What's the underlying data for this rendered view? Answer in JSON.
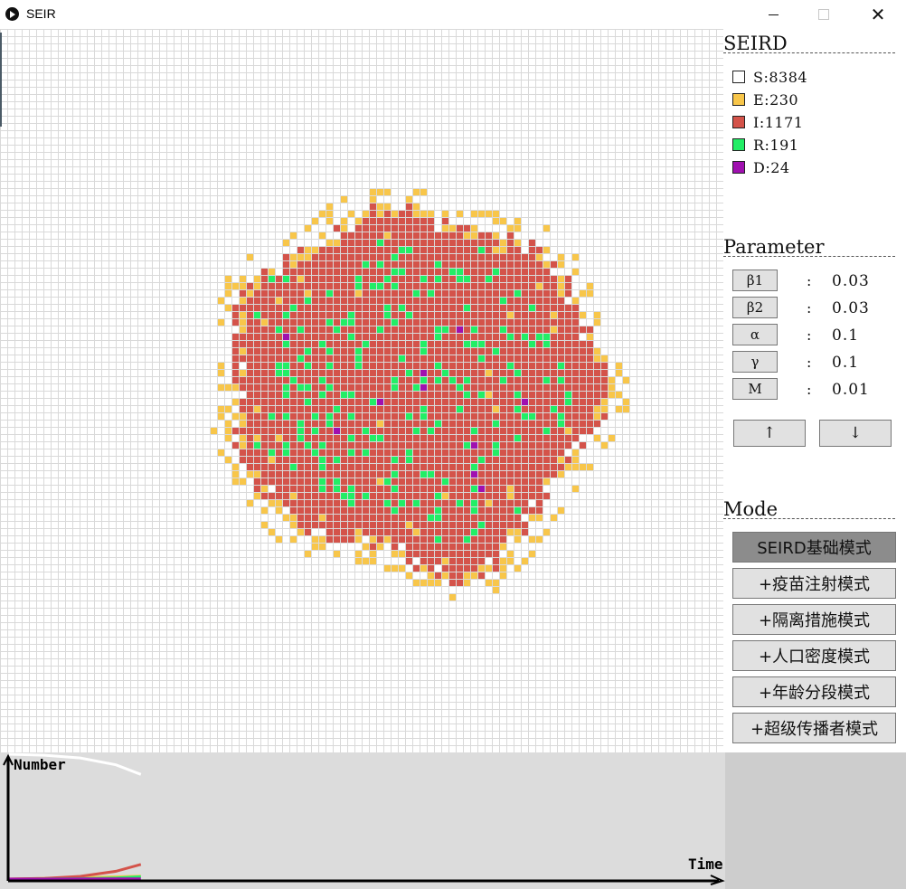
{
  "window": {
    "title": "SEIR",
    "controls": {
      "minimize_icon": "minimize-icon",
      "maximize_icon": "maximize-icon",
      "close_icon": "close-icon",
      "close_glyph": "✕"
    }
  },
  "legend": {
    "title": "SEIRD",
    "items": [
      {
        "label": "S:8384",
        "color": "#ffffff"
      },
      {
        "label": "E:230",
        "color": "#f8c64a"
      },
      {
        "label": "I:1171",
        "color": "#d4534a"
      },
      {
        "label": "R:191",
        "color": "#22ee66"
      },
      {
        "label": "D:24",
        "color": "#a010b0"
      }
    ]
  },
  "parameters": {
    "title": "Parameter",
    "items": [
      {
        "name": "β1",
        "value": "0.03"
      },
      {
        "name": "β2",
        "value": "0.03"
      },
      {
        "name": "α",
        "value": "0.1"
      },
      {
        "name": "γ",
        "value": "0.1"
      },
      {
        "name": "M",
        "value": "0.01"
      }
    ],
    "colon": ":",
    "up_label": "↑",
    "down_label": "↓"
  },
  "mode": {
    "title": "Mode",
    "buttons": [
      {
        "label": "SEIRD基础模式",
        "active": true
      },
      {
        "label": "+疫苗注射模式",
        "active": false
      },
      {
        "label": "+隔离措施模式",
        "active": false
      },
      {
        "label": "+人口密度模式",
        "active": false
      },
      {
        "label": "+年龄分段模式",
        "active": false
      },
      {
        "label": "+超级传播者模式",
        "active": false
      }
    ]
  },
  "colors": {
    "S": "#ffffff",
    "E": "#f8c64a",
    "I": "#d4534a",
    "R": "#22ee66",
    "D": "#a010b0",
    "grid_line": "#d9d9d9",
    "active_mode": "#8c8c8c"
  },
  "chart_data": {
    "type": "line",
    "ylabel": "Number",
    "xlabel": "Time",
    "xlim": [
      0,
      100
    ],
    "ylim": [
      0,
      10000
    ],
    "series": [
      {
        "name": "S",
        "color": "#ffffff",
        "x": [
          0,
          5,
          10,
          15,
          18.5
        ],
        "values": [
          10000,
          9920,
          9700,
          9150,
          8384
        ]
      },
      {
        "name": "E",
        "color": "#f8c64a",
        "x": [
          0,
          5,
          10,
          15,
          18.5
        ],
        "values": [
          0,
          50,
          110,
          180,
          230
        ]
      },
      {
        "name": "I",
        "color": "#d4534a",
        "x": [
          0,
          5,
          10,
          15,
          18.5
        ],
        "values": [
          10,
          60,
          220,
          620,
          1171
        ]
      },
      {
        "name": "R",
        "color": "#22ee66",
        "x": [
          0,
          5,
          10,
          15,
          18.5
        ],
        "values": [
          0,
          5,
          30,
          90,
          191
        ]
      },
      {
        "name": "D",
        "color": "#a010b0",
        "x": [
          0,
          5,
          10,
          15,
          18.5
        ],
        "values": [
          0,
          1,
          4,
          12,
          24
        ]
      }
    ]
  }
}
